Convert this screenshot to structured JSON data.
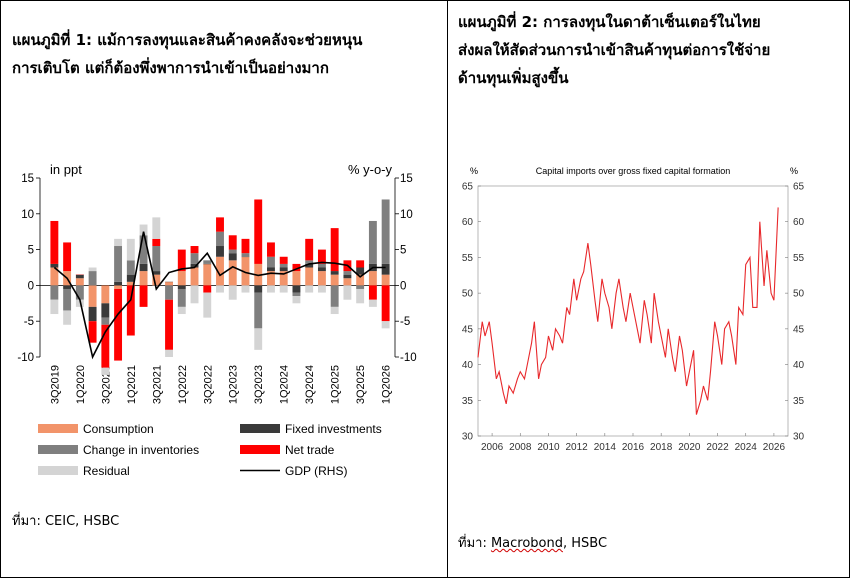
{
  "left_panel": {
    "title_line1": "แผนภูมิที่ 1: แม้การลงทุนและสินค้าคงคลังจะช่วยหนุน",
    "title_line2": "การเติบโต แต่ก็ต้องพึ่งพาการนำเข้าเป็นอย่างมาก",
    "source_prefix": "ที่มา: ",
    "source_text": "CEIC, HSBC"
  },
  "right_panel": {
    "title_line1": "แผนภูมิที่ 2: การลงทุนในดาต้าเซ็นเตอร์ในไทย",
    "title_line2": "ส่งผลให้สัดส่วนการนำเข้าสินค้าทุนต่อการใช้จ่าย",
    "title_line3": "ด้านทุนเพิ่มสูงขึ้น",
    "source_prefix": "ที่มา: ",
    "source_name": "Macrobond",
    "source_rest": ", HSBC"
  },
  "chart_data": [
    {
      "type": "bar",
      "stacked": true,
      "ylabel_left": "in ppt",
      "ylabel_right": "% y-o-y",
      "ylim": [
        -10,
        15
      ],
      "yticks": [
        -10,
        -5,
        0,
        5,
        10,
        15
      ],
      "x_tick_labels": [
        "3Q2019",
        "1Q2020",
        "3Q2020",
        "1Q2021",
        "3Q2021",
        "1Q2022",
        "3Q2022",
        "1Q2023",
        "3Q2023",
        "1Q2024",
        "3Q2024",
        "1Q2025",
        "3Q2025",
        "1Q2026"
      ],
      "categories": [
        "3Q2019",
        "4Q2019",
        "1Q2020",
        "2Q2020",
        "3Q2020",
        "4Q2020",
        "1Q2021",
        "2Q2021",
        "3Q2021",
        "4Q2021",
        "1Q2022",
        "2Q2022",
        "3Q2022",
        "4Q2022",
        "1Q2023",
        "2Q2023",
        "3Q2023",
        "4Q2023",
        "1Q2024",
        "2Q2024",
        "3Q2024",
        "4Q2024",
        "1Q2025",
        "2Q2025",
        "3Q2025",
        "4Q2025",
        "1Q2026"
      ],
      "series": [
        {
          "name": "Consumption",
          "color": "#f2946a",
          "values": [
            2.5,
            2,
            1,
            -3,
            -2.5,
            -0.5,
            0.5,
            2,
            1.5,
            0.5,
            2,
            2.5,
            3,
            4,
            3.5,
            4,
            3,
            2,
            2,
            2,
            2.5,
            2,
            1.5,
            1,
            1.5,
            2,
            1.5
          ]
        },
        {
          "name": "Fixed investments",
          "color": "#3a3a3a",
          "values": [
            0.5,
            -0.5,
            0.5,
            -2,
            -2,
            0.5,
            1,
            1,
            0.5,
            0,
            -0.5,
            0.5,
            0,
            1.5,
            1,
            0,
            -1,
            0.5,
            0.5,
            -1,
            0.5,
            0.5,
            0.5,
            0.5,
            1,
            1,
            1.5
          ]
        },
        {
          "name": "Change in inventories",
          "color": "#7f7f7f",
          "values": [
            -2,
            -3,
            -2,
            2,
            -1,
            5,
            2,
            4,
            3.5,
            -2,
            -2.5,
            1.5,
            0.5,
            2,
            0.5,
            0.5,
            -5,
            1.5,
            0.5,
            -0.5,
            0.5,
            0.5,
            -3,
            0.5,
            -0.5,
            6,
            9
          ]
        },
        {
          "name": "Net trade",
          "color": "#ff0000",
          "values": [
            6,
            4,
            0,
            -3,
            -6,
            -10,
            -7,
            -3,
            1,
            -7,
            3,
            1,
            -1,
            2,
            2,
            2,
            9,
            2,
            1,
            1,
            3,
            2,
            6,
            1.5,
            1,
            -2,
            -5
          ]
        },
        {
          "name": "Residual",
          "color": "#d4d4d4",
          "values": [
            -2,
            -2,
            -1,
            0.5,
            -1,
            1,
            3,
            1.5,
            3,
            -1,
            -1,
            -2.5,
            -3.5,
            -1,
            -2,
            -1,
            -3,
            -1,
            -1,
            -1,
            -1,
            -1,
            -1,
            -2,
            -2,
            -1,
            -1
          ]
        }
      ],
      "line_series": {
        "name": "GDP (RHS)",
        "color": "#000000",
        "values": [
          2.5,
          1,
          -2,
          -12.5,
          -6.5,
          -4,
          -2,
          7.5,
          -0.5,
          1.8,
          2.3,
          2.5,
          4.5,
          1.4,
          2.6,
          1.8,
          1.4,
          1.7,
          1.6,
          2.3,
          3.0,
          3.2,
          3.1,
          2.8,
          1.2,
          2.5,
          2.5
        ]
      }
    },
    {
      "type": "line",
      "title": "Capital imports over gross fixed capital formation",
      "ylabel_left": "%",
      "ylabel_right": "%",
      "ylim": [
        30,
        65
      ],
      "yticks": [
        30,
        35,
        40,
        45,
        50,
        55,
        60,
        65
      ],
      "xlim": [
        2005,
        2027
      ],
      "xticks": [
        2006,
        2008,
        2010,
        2012,
        2014,
        2016,
        2018,
        2020,
        2022,
        2024,
        2026
      ],
      "series": [
        {
          "name": "Capital imports / GFCF",
          "color": "#e8282b",
          "x": [
            2005.0,
            2005.3,
            2005.5,
            2005.8,
            2006.0,
            2006.3,
            2006.5,
            2006.8,
            2007.0,
            2007.2,
            2007.5,
            2007.8,
            2008.0,
            2008.3,
            2008.5,
            2008.8,
            2009.0,
            2009.3,
            2009.5,
            2009.8,
            2010.0,
            2010.3,
            2010.5,
            2010.8,
            2011.0,
            2011.3,
            2011.5,
            2011.8,
            2012.0,
            2012.3,
            2012.5,
            2012.8,
            2013.0,
            2013.3,
            2013.5,
            2013.8,
            2014.0,
            2014.3,
            2014.5,
            2014.8,
            2015.0,
            2015.3,
            2015.5,
            2015.8,
            2016.0,
            2016.3,
            2016.5,
            2016.8,
            2017.0,
            2017.3,
            2017.5,
            2017.8,
            2018.0,
            2018.3,
            2018.5,
            2018.8,
            2019.0,
            2019.3,
            2019.5,
            2019.8,
            2020.0,
            2020.3,
            2020.5,
            2020.8,
            2021.0,
            2021.3,
            2021.5,
            2021.8,
            2022.0,
            2022.3,
            2022.5,
            2022.8,
            2023.0,
            2023.3,
            2023.5,
            2023.8,
            2024.0,
            2024.3,
            2024.5,
            2024.8,
            2025.0,
            2025.3,
            2025.5,
            2025.8,
            2026.0,
            2026.3
          ],
          "y": [
            41,
            46,
            44,
            46,
            43,
            38,
            39,
            36,
            34.5,
            37,
            36,
            38,
            39,
            38,
            40,
            43,
            46,
            38,
            40,
            41,
            44,
            42,
            45,
            44,
            43,
            48,
            47,
            52,
            49,
            52,
            53,
            57,
            54,
            49,
            46,
            52,
            50,
            48,
            45,
            50,
            52,
            48,
            46,
            50,
            48,
            45,
            43,
            49,
            47,
            43,
            50,
            46,
            44,
            41,
            45,
            41,
            39,
            44,
            42,
            37,
            39,
            42,
            33,
            35,
            37,
            35,
            39,
            46,
            44,
            40,
            45,
            46,
            44,
            40,
            48,
            47,
            54,
            55,
            48,
            48,
            60,
            51,
            56,
            50,
            49,
            62
          ]
        }
      ]
    }
  ]
}
